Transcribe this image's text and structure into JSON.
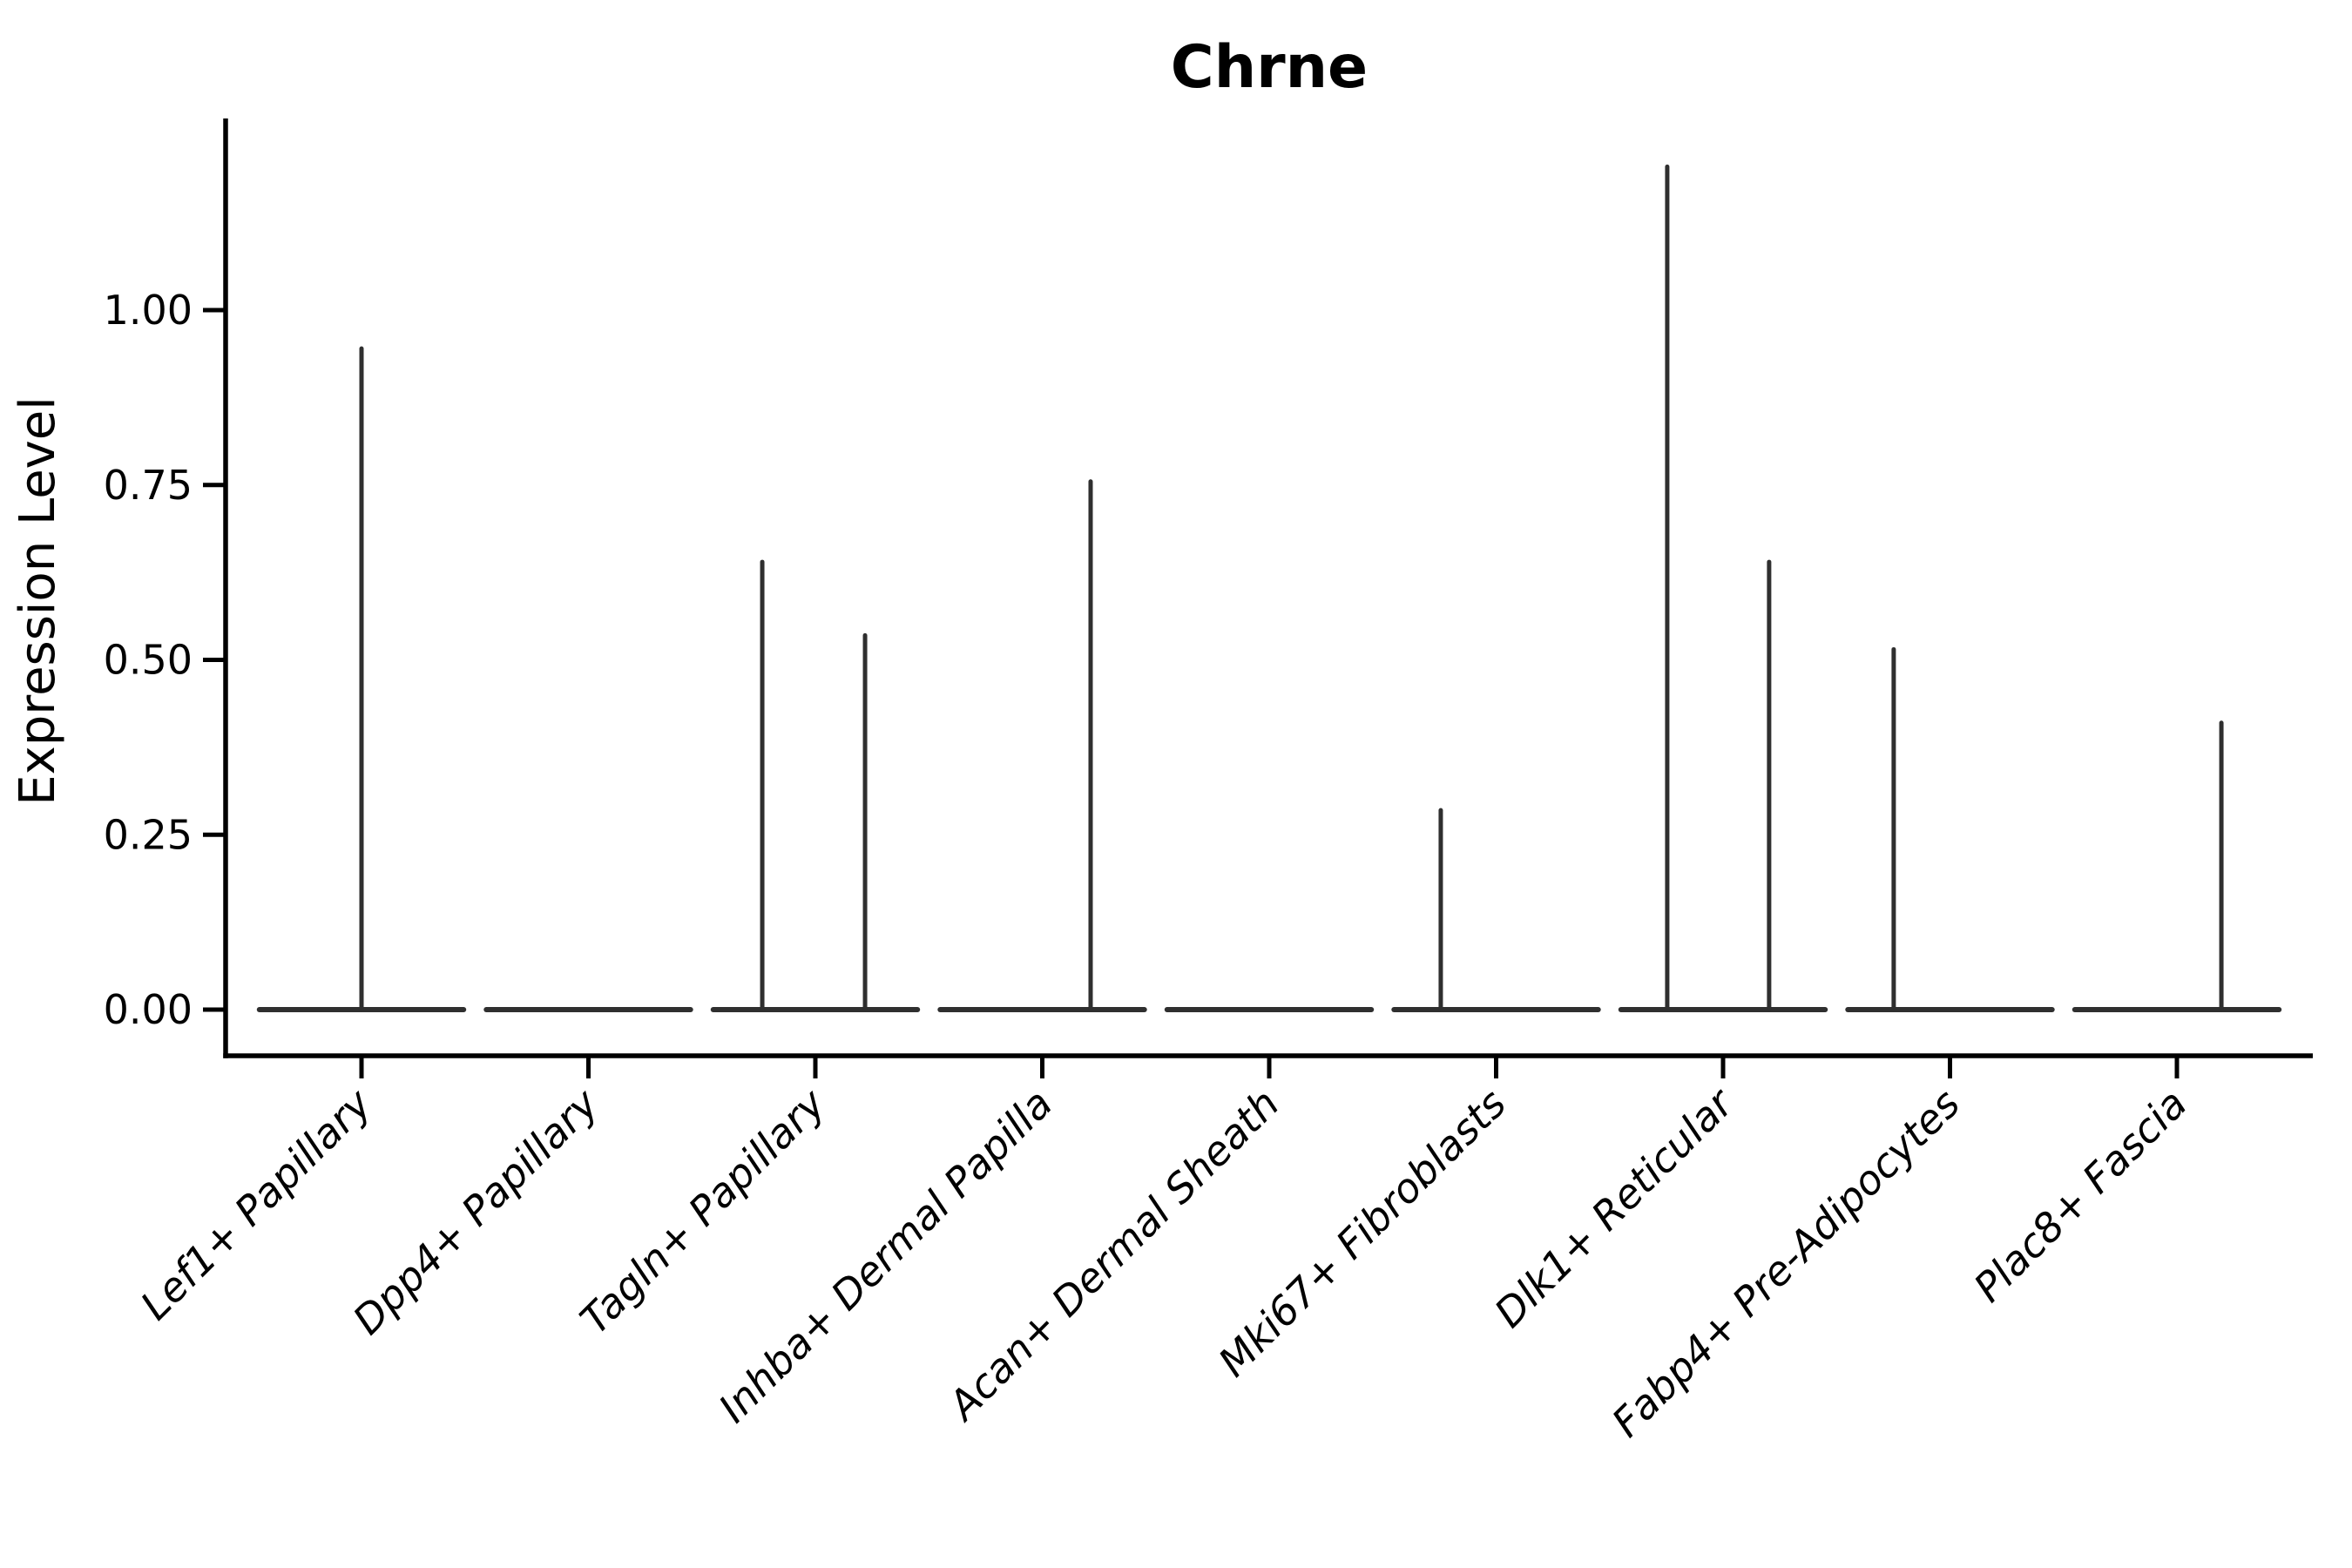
{
  "chart_data": {
    "type": "violin",
    "title": "Chrne",
    "xlabel": "",
    "ylabel": "Expression Level",
    "grid": false,
    "legend": "none",
    "ylim": [
      -0.067,
      1.274
    ],
    "yticks": [
      0,
      0.25,
      0.5,
      0.75,
      1.0
    ],
    "ytick_labels": [
      "0.00",
      "0.25",
      "0.50",
      "0.75",
      "1.00"
    ],
    "x_label_rotation_deg": 45,
    "x_labels_italic": true,
    "categories": [
      "Lef1+ Papillary",
      "Dpp4+ Papillary",
      "Tagln+ Papillary",
      "Inhba+ Dermal Papilla",
      "Acan+ Dermal Sheath",
      "Mki67+ Fibroblasts",
      "Dlk1+ Reticular",
      "Fabp4+ Pre-Adipocytes",
      "Plac8+ Fascia"
    ],
    "violins": [
      {
        "category": "Lef1+ Papillary",
        "baseline_value": 0,
        "baseline_halfwidth": 0.45,
        "spikes": [
          {
            "offset": 0.0,
            "value": 0.945
          }
        ]
      },
      {
        "category": "Dpp4+ Papillary",
        "baseline_value": 0,
        "baseline_halfwidth": 0.45,
        "spikes": []
      },
      {
        "category": "Tagln+ Papillary",
        "baseline_value": 0,
        "baseline_halfwidth": 0.45,
        "spikes": [
          {
            "offset": -0.234,
            "value": 0.64
          },
          {
            "offset": 0.219,
            "value": 0.535
          }
        ]
      },
      {
        "category": "Inhba+ Dermal Papilla",
        "baseline_value": 0,
        "baseline_halfwidth": 0.45,
        "spikes": [
          {
            "offset": 0.213,
            "value": 0.755
          }
        ]
      },
      {
        "category": "Acan+ Dermal Sheath",
        "baseline_value": 0,
        "baseline_halfwidth": 0.45,
        "spikes": []
      },
      {
        "category": "Mki67+ Fibroblasts",
        "baseline_value": 0,
        "baseline_halfwidth": 0.45,
        "spikes": [
          {
            "offset": -0.244,
            "value": 0.285
          }
        ]
      },
      {
        "category": "Dlk1+ Reticular",
        "baseline_value": 0,
        "baseline_halfwidth": 0.45,
        "spikes": [
          {
            "offset": -0.246,
            "value": 1.205
          },
          {
            "offset": 0.203,
            "value": 0.64
          }
        ]
      },
      {
        "category": "Fabp4+ Pre-Adipocytes",
        "baseline_value": 0,
        "baseline_halfwidth": 0.45,
        "spikes": [
          {
            "offset": -0.248,
            "value": 0.515
          }
        ]
      },
      {
        "category": "Plac8+ Fascia",
        "baseline_value": 0,
        "baseline_halfwidth": 0.45,
        "spikes": [
          {
            "offset": 0.196,
            "value": 0.41
          }
        ]
      }
    ],
    "style": {
      "violin_line_color": "#2f2f2f",
      "axis_color": "#000000",
      "background_color": "#ffffff"
    }
  }
}
